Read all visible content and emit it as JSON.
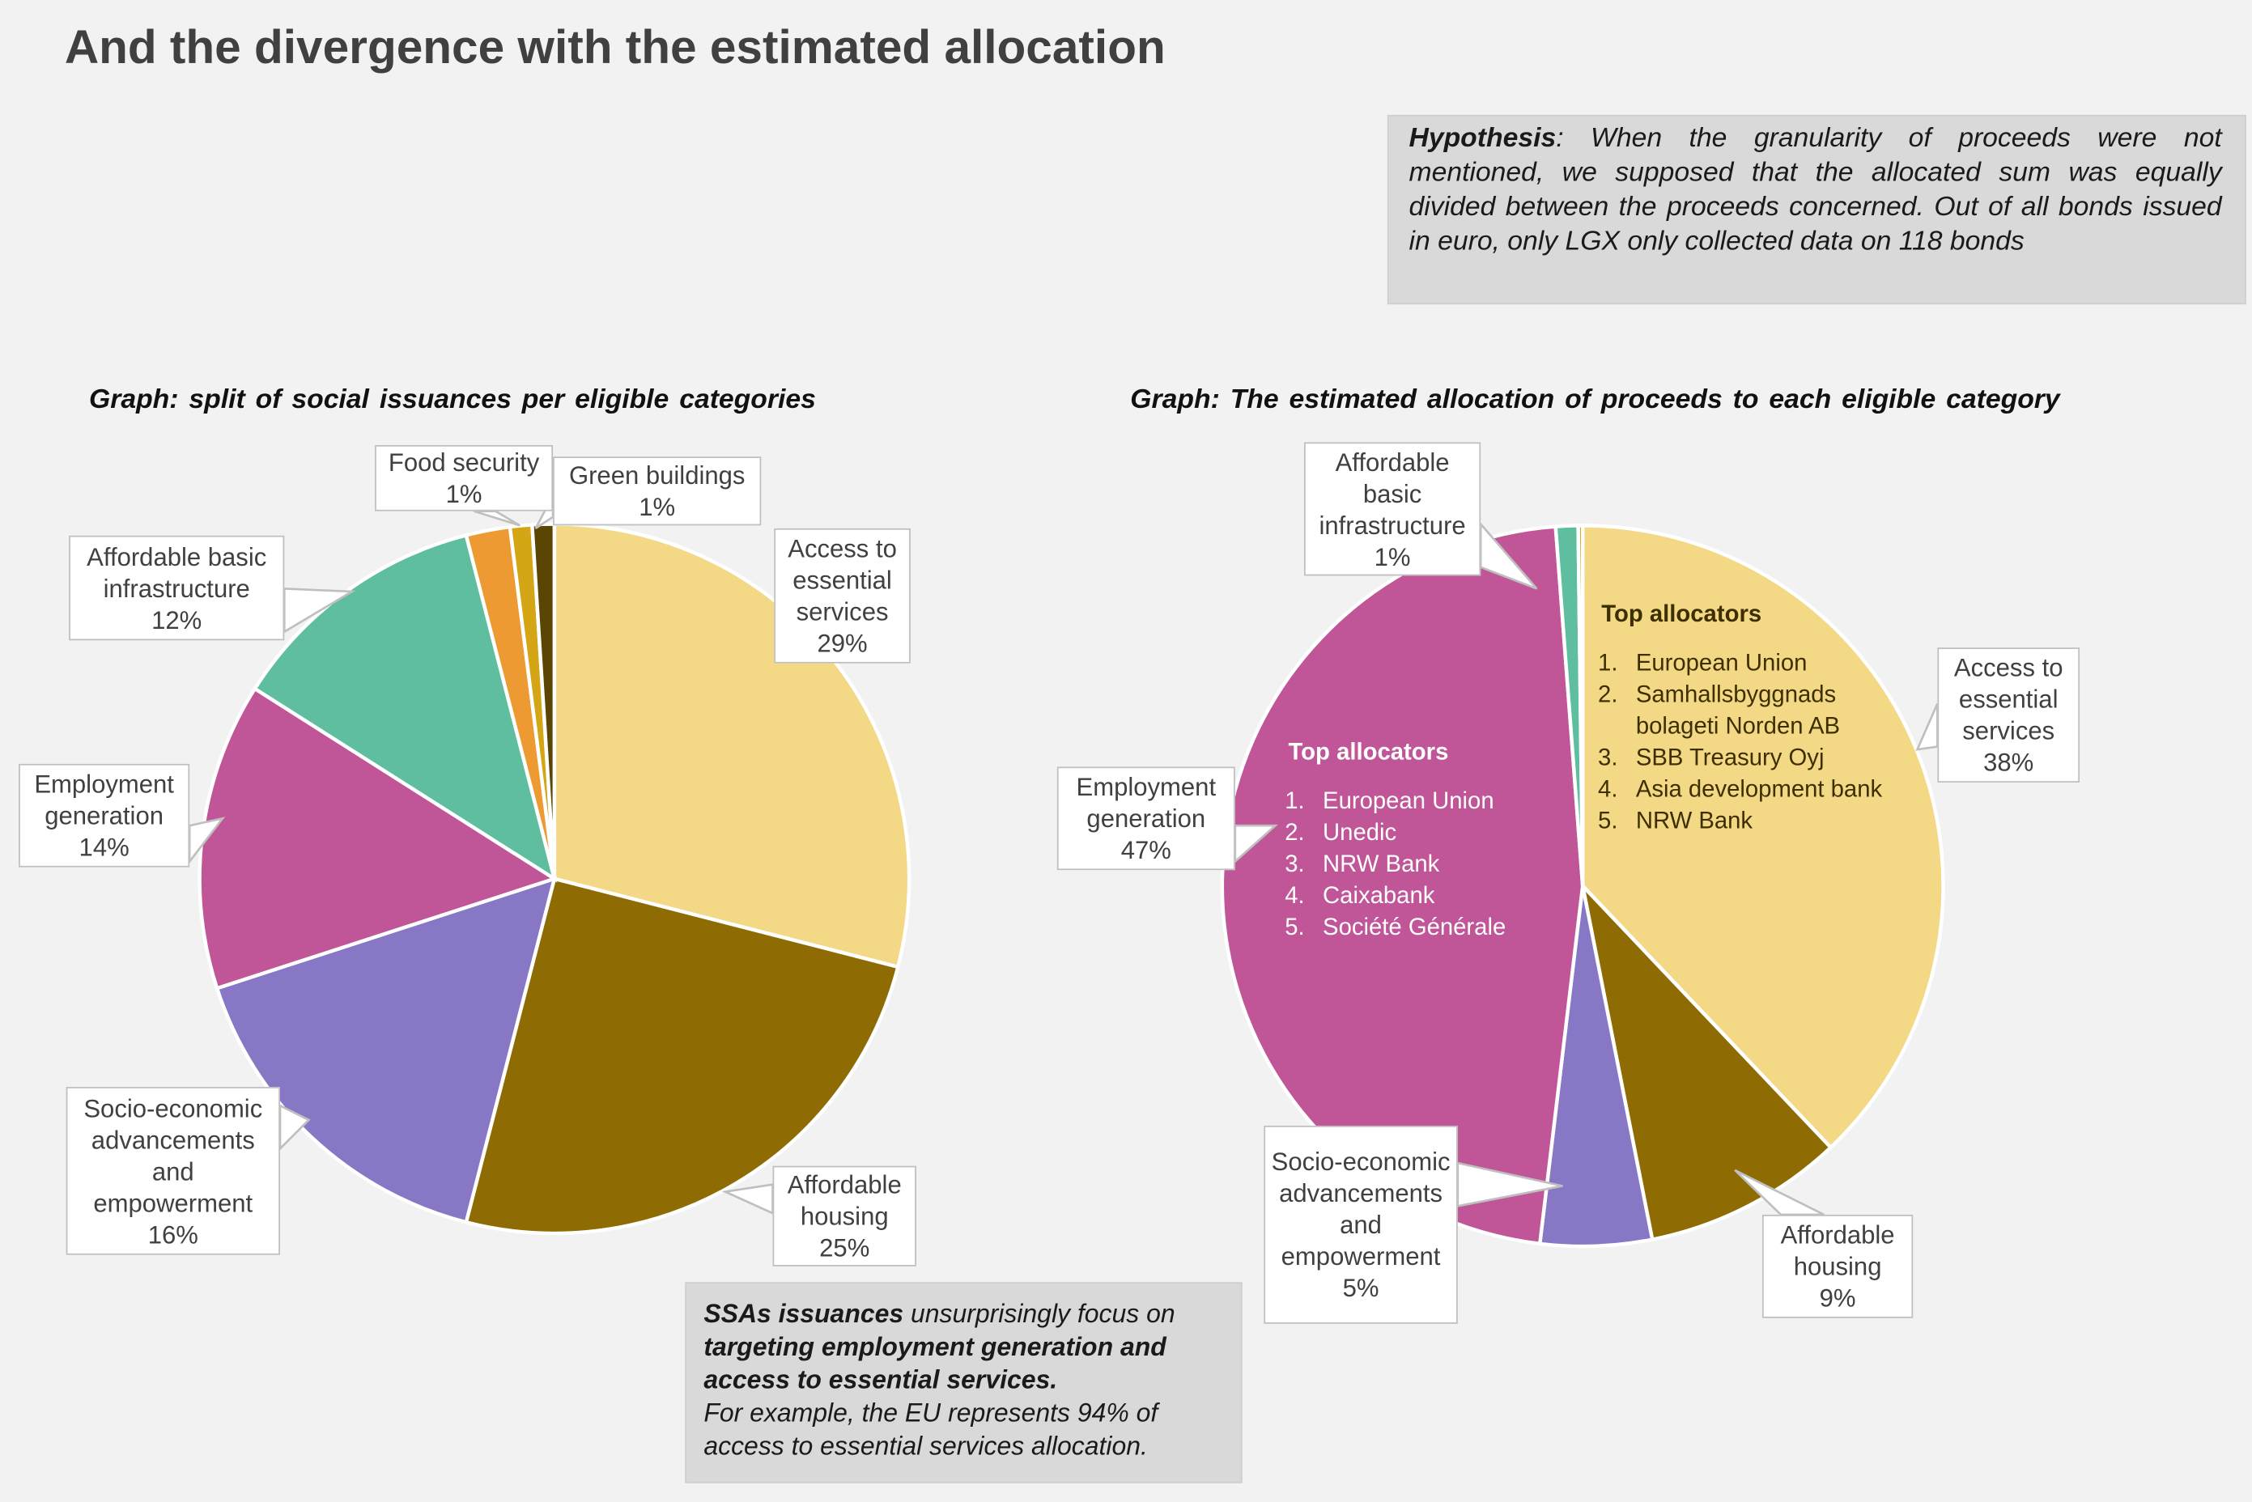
{
  "title": "And the divergence with the estimated allocation",
  "hypothesis": {
    "bold": "Hypothesis",
    "text": ": When the granularity of proceeds were not mentioned, we supposed that the allocated sum was equally divided between the proceeds concerned. Out of all bonds issued in euro, only LGX only collected data on 118 bonds"
  },
  "chart_data": [
    {
      "type": "pie",
      "title": "Graph: split of social issuances per eligible categories",
      "slices": [
        {
          "label": "Access to essential services",
          "value": 29,
          "pct": "29%",
          "color": "#F3D886"
        },
        {
          "label": "Affordable housing",
          "value": 25,
          "pct": "25%",
          "color": "#8E6C03"
        },
        {
          "label": "Socio-economic advancements and empowerment",
          "value": 16,
          "pct": "16%",
          "color": "#8877C4"
        },
        {
          "label": "Employment generation",
          "value": 14,
          "pct": "14%",
          "color": "#C05598"
        },
        {
          "label": "Affordable basic infrastructure",
          "value": 12,
          "pct": "12%",
          "color": "#5FBEA0"
        },
        {
          "label": "",
          "value": 2,
          "pct": "",
          "color": "#EE9A33"
        },
        {
          "label": "Food security",
          "value": 1,
          "pct": "1%",
          "color": "#D4A514"
        },
        {
          "label": "Green buildings",
          "value": 1,
          "pct": "1%",
          "color": "#5A4503"
        }
      ]
    },
    {
      "type": "pie",
      "title": "Graph: The estimated allocation of proceeds to each eligible category",
      "slices": [
        {
          "label": "Access to essential services",
          "value": 38,
          "pct": "38%",
          "color": "#F3D886"
        },
        {
          "label": "Affordable housing",
          "value": 9,
          "pct": "9%",
          "color": "#8E6C03"
        },
        {
          "label": "Socio-economic advancements and empowerment",
          "value": 5,
          "pct": "5%",
          "color": "#8877C4"
        },
        {
          "label": "Employment generation",
          "value": 47,
          "pct": "47%",
          "color": "#C05598"
        },
        {
          "label": "Affordable basic infrastructure",
          "value": 1,
          "pct": "1%",
          "color": "#5FBEA0"
        },
        {
          "label": "",
          "value": 0.2,
          "pct": "",
          "color": "#D4A514"
        }
      ]
    }
  ],
  "top_allocators_employment": {
    "heading": "Top allocators",
    "items": [
      "European Union",
      "Unedic",
      "NRW Bank",
      "Caixabank",
      "Société Générale"
    ]
  },
  "top_allocators_access": {
    "heading": "Top allocators",
    "items": [
      "European Union",
      "Samhallsbyggnads bolageti Norden AB",
      "SBB Treasury Oyj",
      "Asia development bank",
      "NRW Bank"
    ]
  },
  "ssa_note": {
    "bold1": "SSAs issuances",
    "text1": " unsurprisingly focus on ",
    "bold2": "targeting employment generation and access to essential services.",
    "text2": "For example, the EU represents 94% of access to essential services allocation."
  }
}
